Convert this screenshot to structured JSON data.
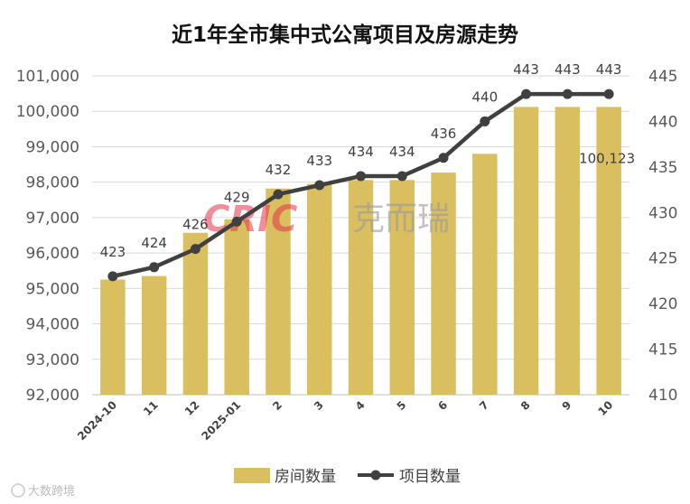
{
  "chart_data": {
    "type": "bar+line",
    "title": "近1年全市集中式公寓项目及房源走势",
    "categories": [
      "2024-10",
      "11",
      "12",
      "2025-01",
      "2",
      "3",
      "4",
      "5",
      "6",
      "7",
      "8",
      "9",
      "10"
    ],
    "series": [
      {
        "name": "房间数量",
        "type": "bar",
        "axis": "left",
        "color": "#d9bf60",
        "values": [
          95250,
          95350,
          96570,
          96950,
          97820,
          97950,
          98060,
          98060,
          98270,
          98800,
          100123,
          100123,
          100123
        ]
      },
      {
        "name": "项目数量",
        "type": "line",
        "axis": "right",
        "color": "#404040",
        "values": [
          423,
          424,
          426,
          429,
          432,
          433,
          434,
          434,
          436,
          440,
          443,
          443,
          443
        ]
      }
    ],
    "bar_label": "100,123",
    "y_left": {
      "min": 92000,
      "max": 101000,
      "step": 1000,
      "ticks": [
        "92,000",
        "93,000",
        "94,000",
        "95,000",
        "96,000",
        "97,000",
        "98,000",
        "99,000",
        "100,000",
        "101,000"
      ]
    },
    "y_right": {
      "min": 410,
      "max": 445,
      "step": 5,
      "ticks": [
        "410",
        "415",
        "420",
        "425",
        "430",
        "435",
        "440",
        "445"
      ]
    },
    "legend_position": "bottom",
    "grid": true
  },
  "watermark": {
    "logo": "CRIC",
    "cn": "克而瑞"
  },
  "credit": "大数跨境"
}
